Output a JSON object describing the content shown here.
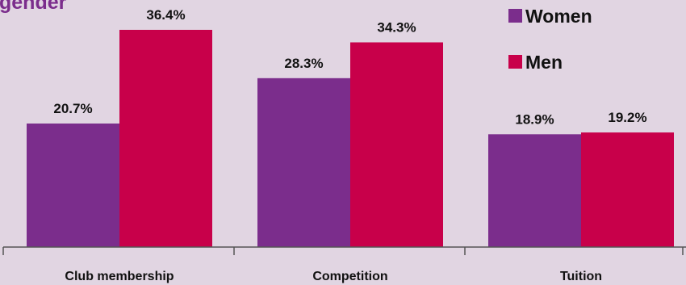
{
  "chart_data": {
    "type": "bar",
    "title": "gender",
    "categories": [
      "Club membership",
      "Competition",
      "Tuition"
    ],
    "series": [
      {
        "name": "Women",
        "color": "#7b2d8c",
        "values": [
          20.7,
          28.3,
          18.9
        ],
        "labels": [
          "20.7%",
          "28.3%",
          "18.9%"
        ]
      },
      {
        "name": "Men",
        "color": "#c8004a",
        "values": [
          36.4,
          34.3,
          19.2
        ],
        "labels": [
          "36.4%",
          "34.3%",
          "19.2%"
        ]
      }
    ],
    "ylim": [
      0,
      41.4
    ],
    "legend": "top-right",
    "grid": false
  }
}
